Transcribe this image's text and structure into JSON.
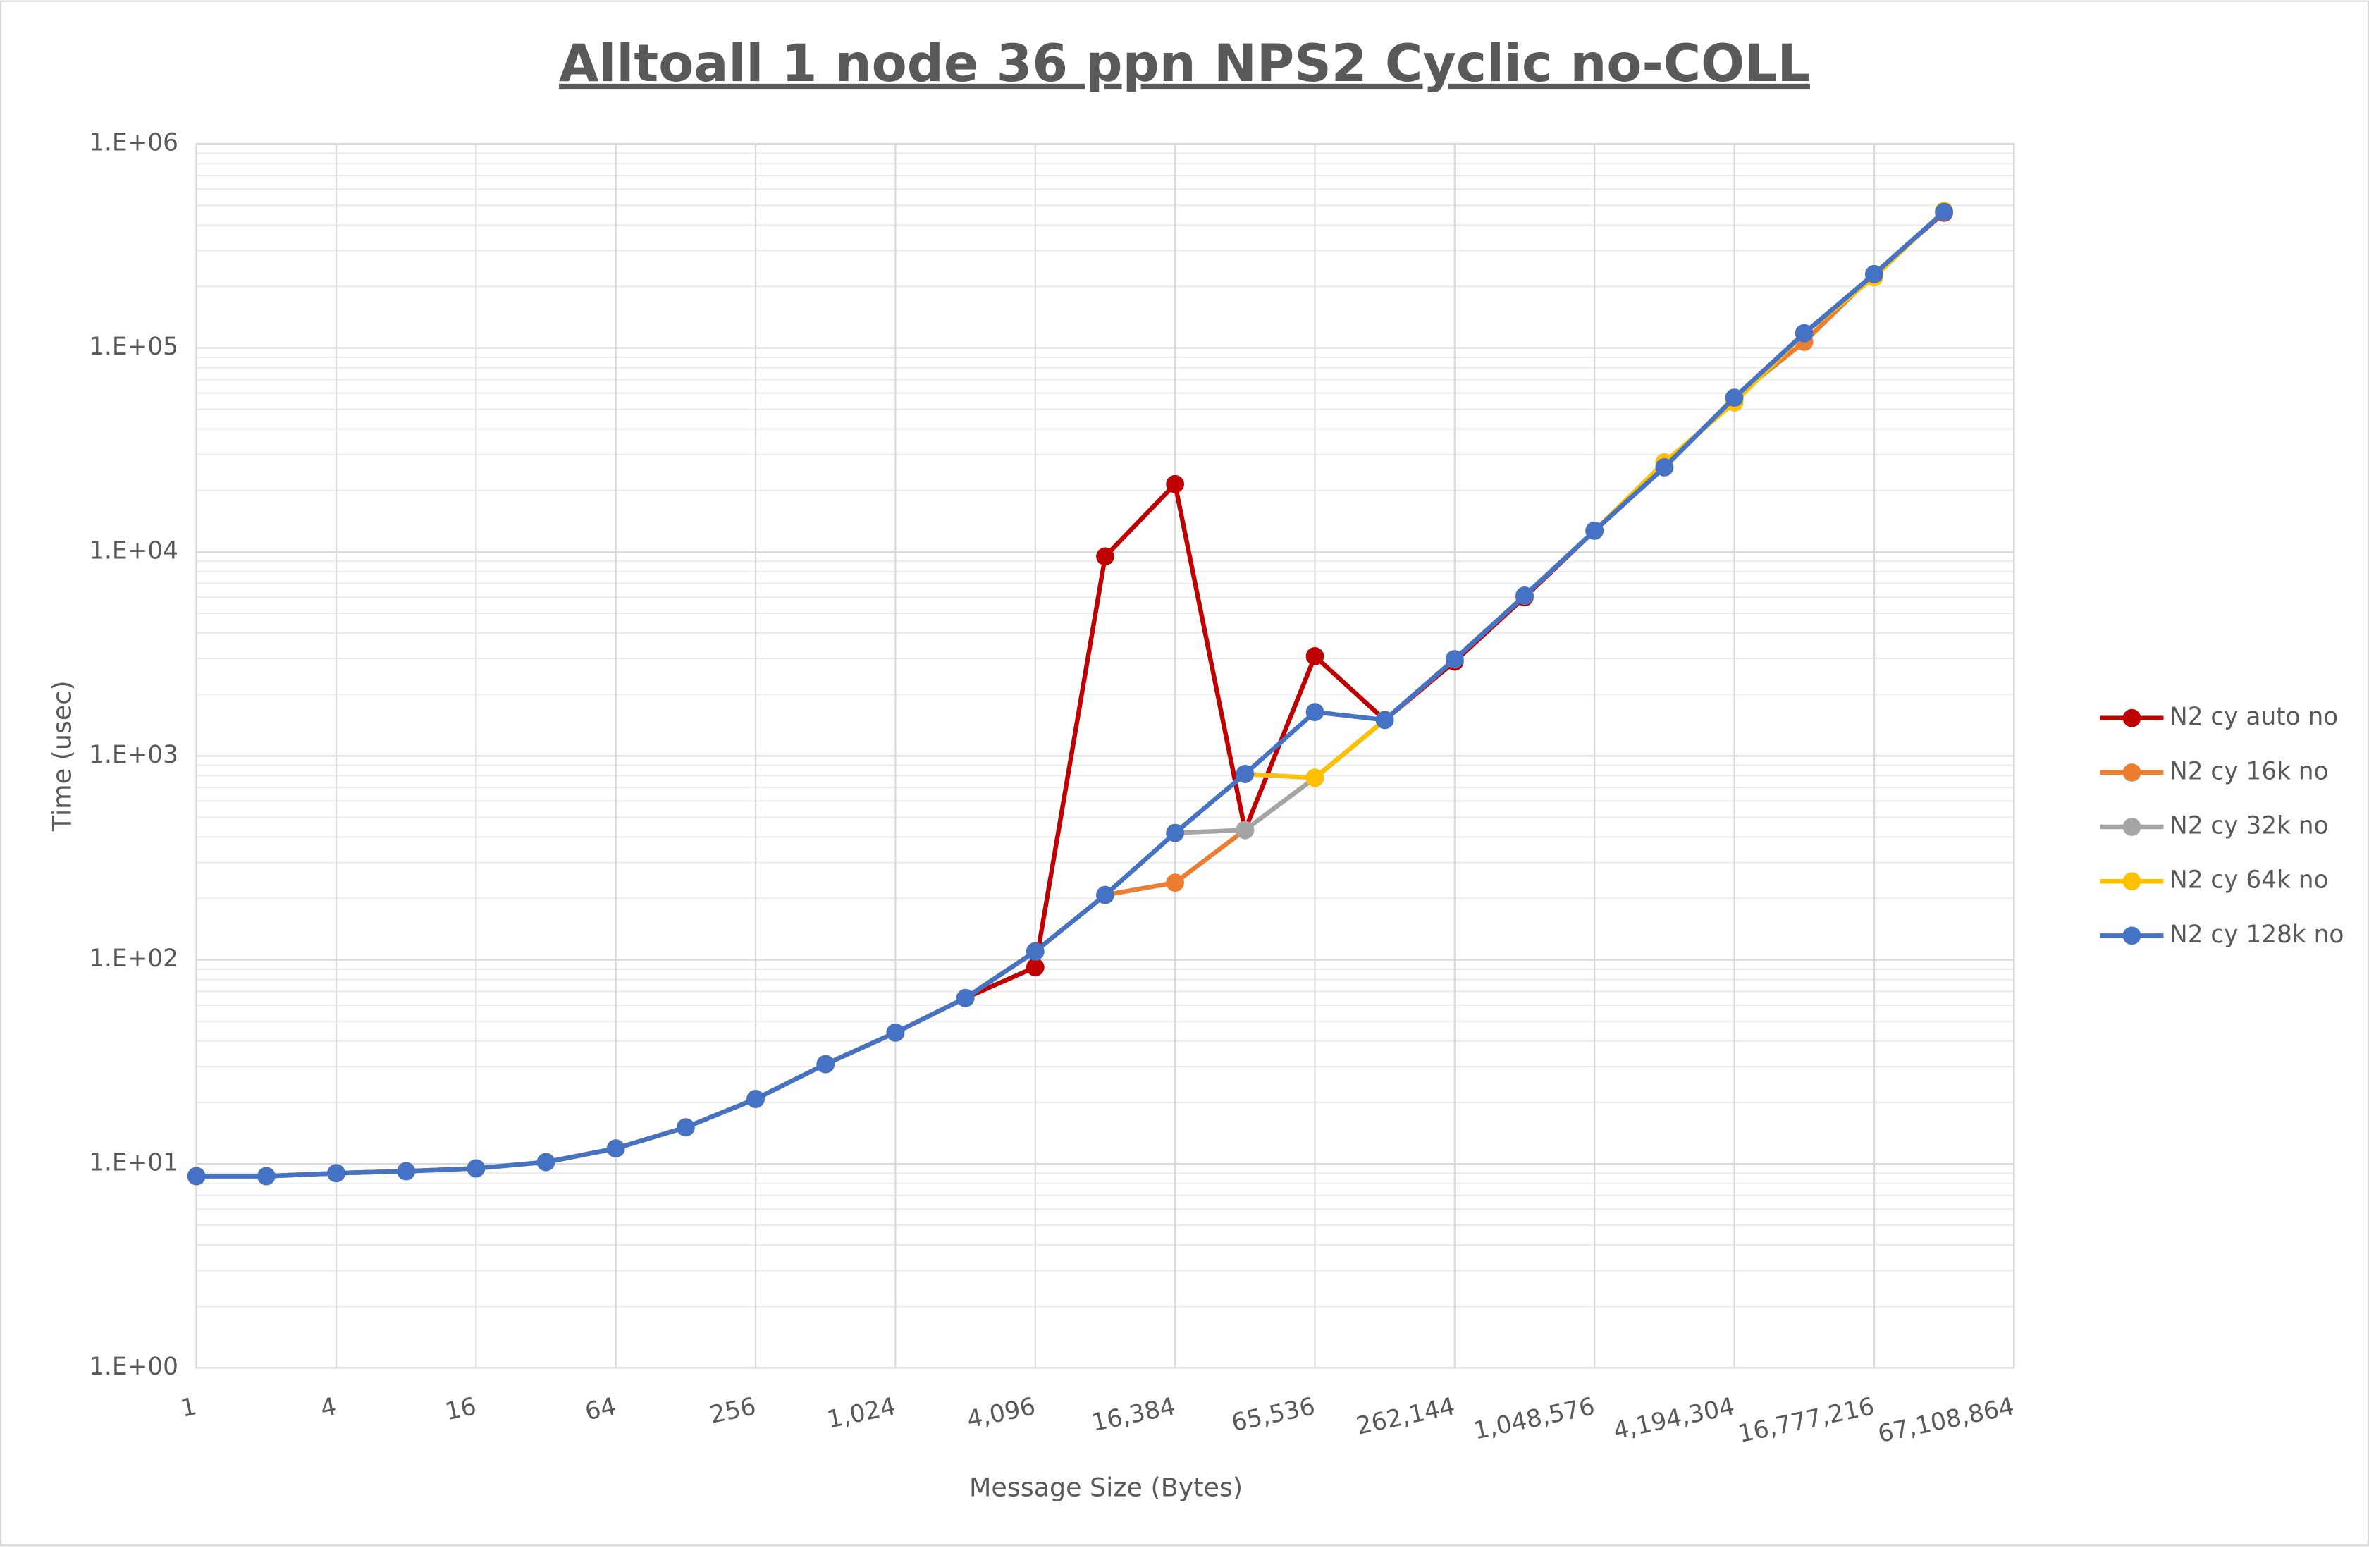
{
  "chart_data": {
    "type": "line",
    "title": "Alltoall 1 node 36 ppn NPS2 Cyclic no-COLL",
    "x_label": "Message Size (Bytes)",
    "y_label": "Time (usec)",
    "x": [
      1,
      2,
      4,
      8,
      16,
      32,
      64,
      128,
      256,
      512,
      1024,
      2048,
      4096,
      8192,
      16384,
      32768,
      65536,
      131072,
      262144,
      524288,
      1048576,
      2097152,
      4194304,
      8388608,
      16777216,
      33554432
    ],
    "x_log_base": 2,
    "y_log_base": 10,
    "xlim": [
      1,
      67108864
    ],
    "xticks": [
      1,
      4,
      16,
      64,
      256,
      {
        "value": 1024,
        "label": "1,024"
      },
      {
        "value": 4096,
        "label": "4,096"
      },
      {
        "value": 16384,
        "label": "16,384"
      },
      {
        "value": 65536,
        "label": "65,536"
      },
      {
        "value": 262144,
        "label": "262,144"
      },
      {
        "value": 1048576,
        "label": "1,048,576"
      },
      {
        "value": 4194304,
        "label": "4,194,304"
      },
      {
        "value": 16777216,
        "label": "16,777,216"
      },
      {
        "value": 67108864,
        "label": "67,108,864"
      }
    ],
    "ylim": [
      1,
      1000000
    ],
    "yticks": [
      {
        "value": 1,
        "label": "1.E+00"
      },
      {
        "value": 10,
        "label": "1.E+01"
      },
      {
        "value": 100,
        "label": "1.E+02"
      },
      {
        "value": 1000,
        "label": "1.E+03"
      },
      {
        "value": 10000,
        "label": "1.E+04"
      },
      {
        "value": 100000,
        "label": "1.E+05"
      },
      {
        "value": 1000000,
        "label": "1.E+06"
      }
    ],
    "grid": true,
    "minor_grid": true,
    "legend": "right",
    "series": [
      {
        "name": "N2 cy auto no",
        "color": "#C00000",
        "values": [
          8.7,
          8.7,
          9.0,
          9.2,
          9.5,
          10.2,
          11.9,
          15.1,
          20.8,
          30.8,
          44,
          65,
          92,
          9500,
          21500,
          433,
          3080,
          1500,
          2900,
          6000,
          12700,
          26000,
          57000,
          118000,
          230000,
          460000
        ]
      },
      {
        "name": "N2 cy 16k no",
        "color": "#ED7D31",
        "values": [
          8.7,
          8.7,
          9.0,
          9.2,
          9.5,
          10.2,
          11.9,
          15.1,
          20.8,
          30.8,
          44,
          65,
          110,
          208,
          239,
          433,
          780,
          1500,
          2980,
          6100,
          12700,
          26000,
          57000,
          107000,
          230000,
          464000
        ]
      },
      {
        "name": "N2 cy 32k no",
        "color": "#A5A5A5",
        "values": [
          8.7,
          8.7,
          9.0,
          9.2,
          9.5,
          10.2,
          11.9,
          15.1,
          20.8,
          30.8,
          44,
          65,
          110,
          208,
          419,
          433,
          780,
          1500,
          2980,
          6100,
          12700,
          26000,
          57000,
          118000,
          230000,
          464000
        ]
      },
      {
        "name": "N2 cy 64k no",
        "color": "#FFC000",
        "values": [
          8.7,
          8.7,
          9.0,
          9.2,
          9.5,
          10.2,
          11.9,
          15.1,
          20.8,
          30.8,
          44,
          65,
          110,
          208,
          419,
          815,
          780,
          1500,
          2980,
          6100,
          12700,
          27500,
          54000,
          118000,
          222000,
          470000
        ]
      },
      {
        "name": "N2 cy 128k no",
        "color": "#4472C4",
        "values": [
          8.7,
          8.7,
          9.0,
          9.2,
          9.5,
          10.2,
          11.9,
          15.1,
          20.8,
          30.8,
          44,
          65,
          110,
          208,
          419,
          815,
          1640,
          1500,
          2980,
          6100,
          12700,
          26000,
          57000,
          118000,
          230000,
          464000
        ]
      }
    ]
  }
}
